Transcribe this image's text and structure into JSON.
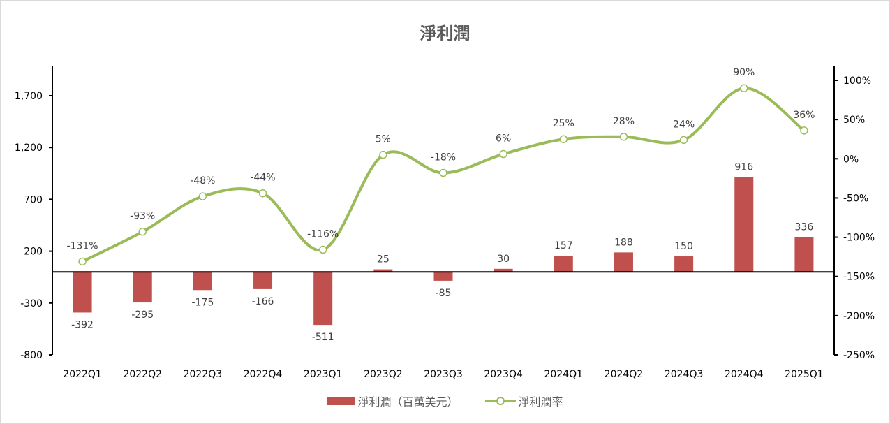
{
  "chart_data": {
    "type": "bar+line",
    "title": "淨利潤",
    "categories": [
      "2022Q1",
      "2022Q2",
      "2022Q3",
      "2022Q4",
      "2023Q1",
      "2023Q2",
      "2023Q3",
      "2023Q4",
      "2024Q1",
      "2024Q2",
      "2024Q3",
      "2024Q4",
      "2025Q1"
    ],
    "series": [
      {
        "name": "淨利潤（百萬美元）",
        "type": "bar",
        "axis": "left",
        "color": "#c0504d",
        "values": [
          -392,
          -295,
          -175,
          -166,
          -511,
          25,
          -85,
          30,
          157,
          188,
          150,
          916,
          336
        ]
      },
      {
        "name": "淨利潤率",
        "type": "line",
        "axis": "right",
        "color": "#9bbb59",
        "smooth": true,
        "marker": "hollow-circle",
        "values": [
          -131,
          -93,
          -48,
          -44,
          -116,
          5,
          -18,
          6,
          25,
          28,
          24,
          90,
          36
        ],
        "labels": [
          "-131%",
          "-93%",
          "-48%",
          "-44%",
          "-116%",
          "5%",
          "-18%",
          "6%",
          "25%",
          "28%",
          "24%",
          "90%",
          "36%"
        ]
      }
    ],
    "left_axis": {
      "ticks": [
        "1,700",
        "1,200",
        "700",
        "200",
        "-300",
        "-800"
      ],
      "tick_values": [
        1700,
        1200,
        700,
        200,
        -300,
        -800
      ],
      "ylim": [
        -800,
        1950
      ]
    },
    "right_axis": {
      "ticks": [
        "100%",
        "50%",
        "0%",
        "-50%",
        "-100%",
        "-150%",
        "-200%",
        "-250%"
      ],
      "tick_values": [
        100,
        50,
        0,
        -50,
        -100,
        -150,
        -200,
        -250
      ],
      "ylim": [
        -250,
        120
      ]
    },
    "grid": false,
    "legend_position": "bottom"
  },
  "title": "淨利潤",
  "legend": {
    "bar_label": "淨利潤（百萬美元）",
    "line_label": "淨利潤率"
  }
}
